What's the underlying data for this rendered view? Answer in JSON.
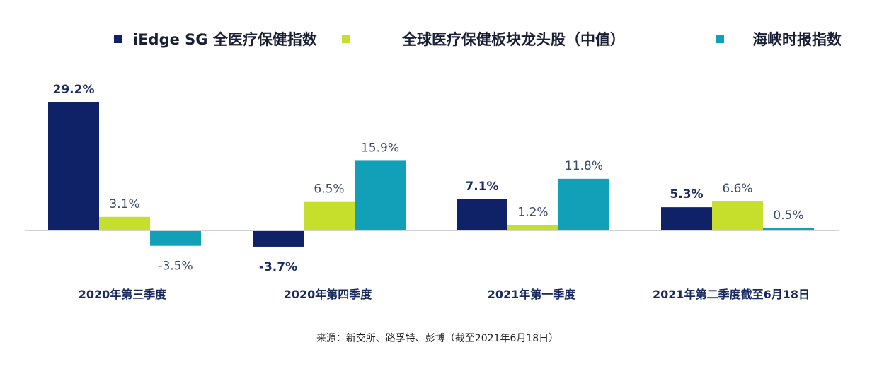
{
  "chart_data": {
    "type": "bar",
    "categories": [
      "2020年第三季度",
      "2020年第四季度",
      "2021年第一季度",
      "2021年第二季度截至6月18日"
    ],
    "series": [
      {
        "name": "iEdge SG 全医疗保健指数",
        "values": [
          29.2,
          -3.7,
          7.1,
          5.3
        ],
        "labels": [
          "29.2%",
          "-3.7%",
          "7.1%",
          "5.3%"
        ],
        "color": "#0f2167"
      },
      {
        "name": "全球医疗保健板块龙头股（中值）",
        "values": [
          3.1,
          6.5,
          1.2,
          6.6
        ],
        "labels": [
          "3.1%",
          "6.5%",
          "1.2%",
          "6.6%"
        ],
        "color": "#c6df2c"
      },
      {
        "name": "海峡时报指数",
        "values": [
          -3.5,
          15.9,
          11.8,
          0.5
        ],
        "labels": [
          "-3.5%",
          "15.9%",
          "11.8%",
          "0.5%"
        ],
        "color": "#12a0b8"
      }
    ],
    "unit": "%",
    "grid": false,
    "legend_position": "top",
    "source": "来源：新交所、路孚特、彭博（截至2021年6月18日）"
  }
}
